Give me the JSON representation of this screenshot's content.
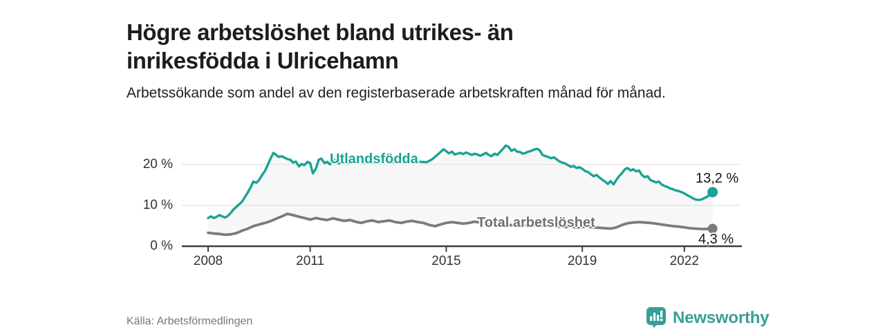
{
  "header": {
    "title": "Högre arbetslöshet bland utrikes- än inrikesfödda i Ulricehamn",
    "subtitle": "Arbetssökande som andel av den registerbaserade arbetskraften månad för månad."
  },
  "footer": {
    "source": "Källa: Arbetsförmedlingen",
    "brand": "Newsworthy",
    "logo_icon": "bar-chart-speech-bubble-icon"
  },
  "colors": {
    "accent_teal": "#1aa294",
    "line_gray": "#7b7b7b",
    "band_fill": "#f7f7f7",
    "gridline": "#e3e3e3",
    "axis": "#3c3c3c",
    "brand_teal": "#389e99"
  },
  "chart_data": {
    "type": "line",
    "title": "Högre arbetslöshet bland utrikes- än inrikesfödda i Ulricehamn",
    "unit": "%",
    "xlabel": "",
    "ylabel": "",
    "xlim": [
      2007.2,
      2023.7
    ],
    "ylim": [
      0,
      26
    ],
    "grid": "horizontal",
    "legend_position": "inline-labels",
    "y_ticks": [
      {
        "value": 0,
        "label": "0 %"
      },
      {
        "value": 10,
        "label": "10 %"
      },
      {
        "value": 20,
        "label": "20 %"
      }
    ],
    "x_ticks": [
      {
        "value": 2008,
        "label": "2008"
      },
      {
        "value": 2011,
        "label": "2011"
      },
      {
        "value": 2015,
        "label": "2015"
      },
      {
        "value": 2019,
        "label": "2019"
      },
      {
        "value": 2022,
        "label": "2022"
      }
    ],
    "band_fill_between_series": true,
    "series": [
      {
        "name": "Utlandsfödda",
        "color": "#1aa294",
        "end_label": "13,2 %",
        "end_value": 13.2,
        "points": [
          [
            2008.0,
            6.9
          ],
          [
            2008.08,
            7.3
          ],
          [
            2008.17,
            6.9
          ],
          [
            2008.25,
            7.2
          ],
          [
            2008.33,
            7.6
          ],
          [
            2008.42,
            7.3
          ],
          [
            2008.5,
            7.0
          ],
          [
            2008.58,
            7.4
          ],
          [
            2008.67,
            8.2
          ],
          [
            2008.75,
            9.0
          ],
          [
            2008.83,
            9.6
          ],
          [
            2008.92,
            10.3
          ],
          [
            2009.0,
            10.9
          ],
          [
            2009.08,
            12.0
          ],
          [
            2009.17,
            13.2
          ],
          [
            2009.25,
            14.4
          ],
          [
            2009.33,
            15.8
          ],
          [
            2009.42,
            15.5
          ],
          [
            2009.5,
            16.2
          ],
          [
            2009.58,
            17.3
          ],
          [
            2009.67,
            18.4
          ],
          [
            2009.75,
            19.8
          ],
          [
            2009.83,
            21.3
          ],
          [
            2009.92,
            22.8
          ],
          [
            2010.0,
            22.3
          ],
          [
            2010.08,
            21.8
          ],
          [
            2010.17,
            22.0
          ],
          [
            2010.25,
            21.6
          ],
          [
            2010.33,
            21.3
          ],
          [
            2010.42,
            21.1
          ],
          [
            2010.5,
            20.4
          ],
          [
            2010.58,
            20.7
          ],
          [
            2010.67,
            19.5
          ],
          [
            2010.75,
            20.1
          ],
          [
            2010.83,
            19.8
          ],
          [
            2010.92,
            20.6
          ],
          [
            2011.0,
            20.3
          ],
          [
            2011.08,
            17.8
          ],
          [
            2011.17,
            19.0
          ],
          [
            2011.25,
            21.1
          ],
          [
            2011.33,
            21.4
          ],
          [
            2011.42,
            20.3
          ],
          [
            2011.5,
            20.6
          ],
          [
            2011.58,
            20.0
          ],
          [
            2011.67,
            21.3
          ],
          [
            2011.75,
            20.8
          ],
          [
            2011.83,
            20.2
          ],
          [
            2011.92,
            20.5
          ],
          [
            2012.08,
            20.3
          ],
          [
            2012.25,
            20.6
          ],
          [
            2012.42,
            20.9
          ],
          [
            2012.58,
            20.4
          ],
          [
            2012.75,
            20.7
          ],
          [
            2012.92,
            20.3
          ],
          [
            2013.08,
            20.6
          ],
          [
            2013.25,
            20.9
          ],
          [
            2013.42,
            20.5
          ],
          [
            2013.58,
            20.8
          ],
          [
            2013.75,
            20.4
          ],
          [
            2013.92,
            20.7
          ],
          [
            2014.08,
            20.4
          ],
          [
            2014.25,
            20.6
          ],
          [
            2014.42,
            20.5
          ],
          [
            2014.58,
            21.2
          ],
          [
            2014.75,
            22.4
          ],
          [
            2014.92,
            23.7
          ],
          [
            2015.08,
            22.7
          ],
          [
            2015.17,
            23.1
          ],
          [
            2015.25,
            22.4
          ],
          [
            2015.33,
            22.6
          ],
          [
            2015.42,
            22.8
          ],
          [
            2015.5,
            22.5
          ],
          [
            2015.58,
            22.9
          ],
          [
            2015.67,
            22.6
          ],
          [
            2015.75,
            22.3
          ],
          [
            2015.83,
            22.6
          ],
          [
            2015.92,
            22.4
          ],
          [
            2016.0,
            22.1
          ],
          [
            2016.08,
            22.4
          ],
          [
            2016.17,
            22.8
          ],
          [
            2016.25,
            22.3
          ],
          [
            2016.33,
            22.0
          ],
          [
            2016.42,
            22.6
          ],
          [
            2016.5,
            22.3
          ],
          [
            2016.58,
            23.0
          ],
          [
            2016.67,
            23.8
          ],
          [
            2016.75,
            24.6
          ],
          [
            2016.83,
            24.3
          ],
          [
            2016.92,
            23.3
          ],
          [
            2017.0,
            23.7
          ],
          [
            2017.08,
            23.1
          ],
          [
            2017.17,
            23.0
          ],
          [
            2017.25,
            22.6
          ],
          [
            2017.33,
            22.8
          ],
          [
            2017.42,
            23.1
          ],
          [
            2017.5,
            23.3
          ],
          [
            2017.58,
            23.6
          ],
          [
            2017.67,
            23.8
          ],
          [
            2017.75,
            23.4
          ],
          [
            2017.83,
            22.3
          ],
          [
            2017.92,
            22.0
          ],
          [
            2018.0,
            21.8
          ],
          [
            2018.08,
            21.5
          ],
          [
            2018.17,
            21.7
          ],
          [
            2018.25,
            21.2
          ],
          [
            2018.33,
            20.7
          ],
          [
            2018.42,
            20.4
          ],
          [
            2018.5,
            20.2
          ],
          [
            2018.58,
            19.8
          ],
          [
            2018.67,
            19.4
          ],
          [
            2018.75,
            19.6
          ],
          [
            2018.83,
            19.1
          ],
          [
            2018.92,
            19.3
          ],
          [
            2019.0,
            18.9
          ],
          [
            2019.08,
            18.4
          ],
          [
            2019.17,
            18.1
          ],
          [
            2019.25,
            17.6
          ],
          [
            2019.33,
            17.1
          ],
          [
            2019.42,
            17.4
          ],
          [
            2019.5,
            16.8
          ],
          [
            2019.58,
            16.3
          ],
          [
            2019.67,
            15.8
          ],
          [
            2019.75,
            15.2
          ],
          [
            2019.83,
            15.9
          ],
          [
            2019.92,
            15.1
          ],
          [
            2020.0,
            16.2
          ],
          [
            2020.08,
            17.1
          ],
          [
            2020.17,
            17.9
          ],
          [
            2020.25,
            18.8
          ],
          [
            2020.33,
            19.1
          ],
          [
            2020.42,
            18.5
          ],
          [
            2020.5,
            18.8
          ],
          [
            2020.58,
            18.3
          ],
          [
            2020.67,
            18.5
          ],
          [
            2020.75,
            17.4
          ],
          [
            2020.83,
            16.9
          ],
          [
            2020.92,
            17.1
          ],
          [
            2021.0,
            16.2
          ],
          [
            2021.08,
            15.9
          ],
          [
            2021.17,
            15.6
          ],
          [
            2021.25,
            15.8
          ],
          [
            2021.33,
            15.1
          ],
          [
            2021.42,
            14.7
          ],
          [
            2021.5,
            14.5
          ],
          [
            2021.58,
            14.1
          ],
          [
            2021.67,
            13.9
          ],
          [
            2021.75,
            13.6
          ],
          [
            2021.83,
            13.5
          ],
          [
            2021.92,
            13.2
          ],
          [
            2022.0,
            12.9
          ],
          [
            2022.08,
            12.5
          ],
          [
            2022.17,
            12.1
          ],
          [
            2022.25,
            11.7
          ],
          [
            2022.33,
            11.4
          ],
          [
            2022.42,
            11.3
          ],
          [
            2022.5,
            11.4
          ],
          [
            2022.58,
            11.7
          ],
          [
            2022.67,
            12.1
          ],
          [
            2022.75,
            12.6
          ],
          [
            2022.83,
            13.2
          ]
        ]
      },
      {
        "name": "Total arbetslöshet",
        "color": "#7b7b7b",
        "end_label": "4,3 %",
        "end_value": 4.3,
        "points": [
          [
            2008.0,
            3.3
          ],
          [
            2008.17,
            3.1
          ],
          [
            2008.33,
            3.0
          ],
          [
            2008.5,
            2.8
          ],
          [
            2008.67,
            2.9
          ],
          [
            2008.83,
            3.2
          ],
          [
            2009.0,
            3.8
          ],
          [
            2009.17,
            4.3
          ],
          [
            2009.33,
            4.9
          ],
          [
            2009.5,
            5.3
          ],
          [
            2009.67,
            5.7
          ],
          [
            2009.83,
            6.1
          ],
          [
            2010.0,
            6.7
          ],
          [
            2010.17,
            7.3
          ],
          [
            2010.33,
            7.9
          ],
          [
            2010.5,
            7.6
          ],
          [
            2010.67,
            7.2
          ],
          [
            2010.83,
            6.9
          ],
          [
            2011.0,
            6.5
          ],
          [
            2011.17,
            6.9
          ],
          [
            2011.33,
            6.6
          ],
          [
            2011.5,
            6.4
          ],
          [
            2011.67,
            6.8
          ],
          [
            2011.83,
            6.5
          ],
          [
            2012.0,
            6.2
          ],
          [
            2012.17,
            6.4
          ],
          [
            2012.33,
            6.0
          ],
          [
            2012.5,
            5.7
          ],
          [
            2012.67,
            6.1
          ],
          [
            2012.83,
            6.3
          ],
          [
            2013.0,
            5.9
          ],
          [
            2013.17,
            6.1
          ],
          [
            2013.33,
            6.3
          ],
          [
            2013.5,
            5.9
          ],
          [
            2013.67,
            5.7
          ],
          [
            2013.83,
            6.0
          ],
          [
            2014.0,
            6.2
          ],
          [
            2014.17,
            5.9
          ],
          [
            2014.33,
            5.7
          ],
          [
            2014.5,
            5.2
          ],
          [
            2014.67,
            4.9
          ],
          [
            2014.83,
            5.3
          ],
          [
            2015.0,
            5.7
          ],
          [
            2015.17,
            5.9
          ],
          [
            2015.33,
            5.7
          ],
          [
            2015.5,
            5.5
          ],
          [
            2015.67,
            5.7
          ],
          [
            2015.83,
            6.0
          ],
          [
            2016.0,
            5.8
          ],
          [
            2016.17,
            5.5
          ],
          [
            2016.33,
            5.3
          ],
          [
            2016.5,
            5.2
          ],
          [
            2016.67,
            5.4
          ],
          [
            2016.83,
            5.2
          ],
          [
            2017.0,
            5.1
          ],
          [
            2017.17,
            5.3
          ],
          [
            2017.33,
            5.1
          ],
          [
            2017.5,
            5.0
          ],
          [
            2017.67,
            5.2
          ],
          [
            2017.83,
            5.0
          ],
          [
            2018.0,
            4.9
          ],
          [
            2018.17,
            5.0
          ],
          [
            2018.33,
            4.8
          ],
          [
            2018.5,
            4.7
          ],
          [
            2018.67,
            4.8
          ],
          [
            2018.83,
            4.6
          ],
          [
            2019.0,
            4.7
          ],
          [
            2019.17,
            4.8
          ],
          [
            2019.33,
            4.6
          ],
          [
            2019.5,
            4.5
          ],
          [
            2019.67,
            4.4
          ],
          [
            2019.83,
            4.3
          ],
          [
            2020.0,
            4.6
          ],
          [
            2020.17,
            5.2
          ],
          [
            2020.33,
            5.6
          ],
          [
            2020.5,
            5.8
          ],
          [
            2020.67,
            5.9
          ],
          [
            2020.83,
            5.8
          ],
          [
            2021.0,
            5.7
          ],
          [
            2021.17,
            5.5
          ],
          [
            2021.33,
            5.3
          ],
          [
            2021.5,
            5.1
          ],
          [
            2021.67,
            4.9
          ],
          [
            2021.83,
            4.8
          ],
          [
            2022.0,
            4.6
          ],
          [
            2022.17,
            4.4
          ],
          [
            2022.33,
            4.3
          ],
          [
            2022.5,
            4.2
          ],
          [
            2022.67,
            4.2
          ],
          [
            2022.83,
            4.3
          ]
        ]
      }
    ]
  }
}
